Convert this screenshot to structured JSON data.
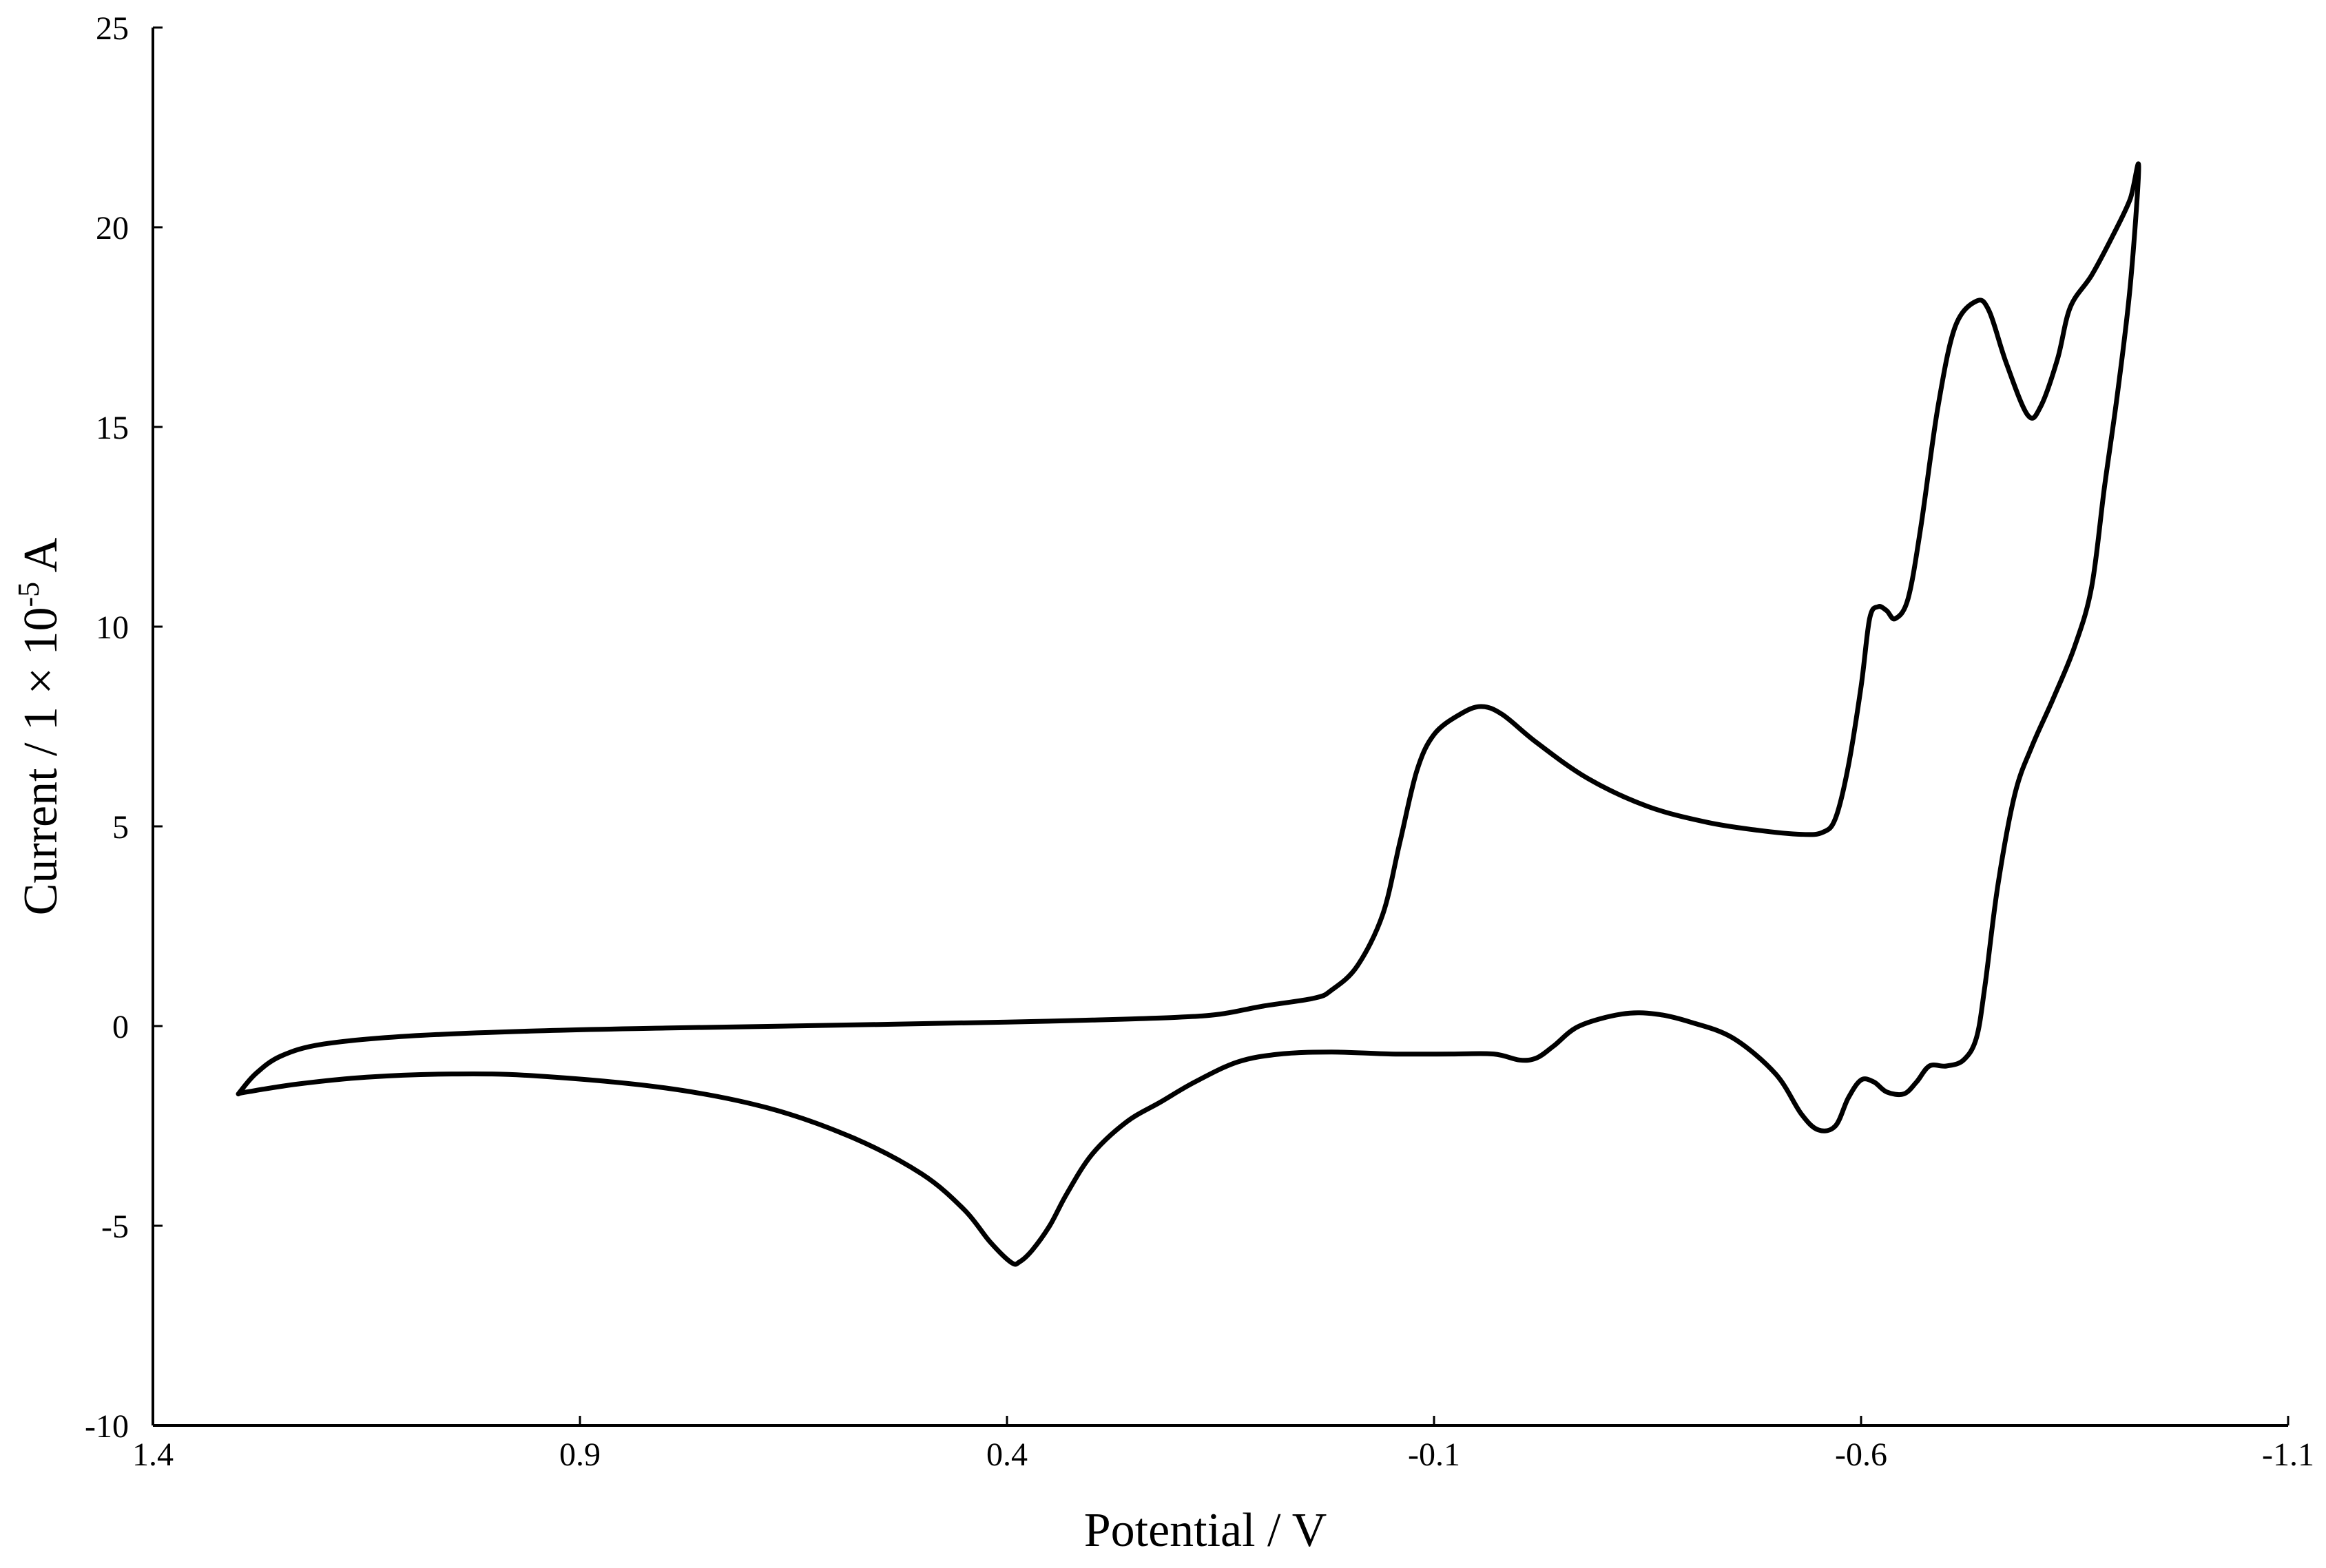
{
  "chart_data": {
    "type": "line",
    "title": "",
    "xlabel": "Potential / V",
    "ylabel": {
      "main": "Current / 1 × 10",
      "exponent": "-5",
      "unit": " A"
    },
    "xlim": [
      1.4,
      -1.1
    ],
    "ylim": [
      -10,
      25
    ],
    "x_reversed": true,
    "grid": false,
    "legend": "none",
    "line_color": "#000000",
    "x_ticks": [
      {
        "value": 1.4,
        "label": "1.4"
      },
      {
        "value": 0.9,
        "label": "0.9"
      },
      {
        "value": 0.4,
        "label": "0.4"
      },
      {
        "value": -0.1,
        "label": "-0.1"
      },
      {
        "value": -0.6,
        "label": "-0.6"
      },
      {
        "value": -1.1,
        "label": "-1.1"
      }
    ],
    "y_ticks": [
      {
        "value": 25,
        "label": "25"
      },
      {
        "value": 20,
        "label": "20"
      },
      {
        "value": 15,
        "label": "15"
      },
      {
        "value": 10,
        "label": "10"
      },
      {
        "value": 5,
        "label": "5"
      },
      {
        "value": 0,
        "label": "0"
      },
      {
        "value": -5,
        "label": "-5"
      },
      {
        "value": -10,
        "label": "-10"
      }
    ],
    "series": [
      {
        "points": [
          [
            1.3,
            -1.7
          ],
          [
            1.28,
            -1.2
          ],
          [
            1.25,
            -0.75
          ],
          [
            1.2,
            -0.45
          ],
          [
            1.1,
            -0.25
          ],
          [
            0.95,
            -0.12
          ],
          [
            0.8,
            -0.05
          ],
          [
            0.6,
            0.02
          ],
          [
            0.4,
            0.1
          ],
          [
            0.3,
            0.15
          ],
          [
            0.2,
            0.22
          ],
          [
            0.15,
            0.3
          ],
          [
            0.1,
            0.5
          ],
          [
            0.04,
            0.7
          ],
          [
            0.02,
            0.9
          ],
          [
            -0.01,
            1.5
          ],
          [
            -0.04,
            2.8
          ],
          [
            -0.06,
            4.6
          ],
          [
            -0.08,
            6.4
          ],
          [
            -0.1,
            7.3
          ],
          [
            -0.13,
            7.8
          ],
          [
            -0.155,
            8.0
          ],
          [
            -0.18,
            7.8
          ],
          [
            -0.22,
            7.1
          ],
          [
            -0.28,
            6.2
          ],
          [
            -0.35,
            5.5
          ],
          [
            -0.42,
            5.1
          ],
          [
            -0.48,
            4.9
          ],
          [
            -0.53,
            4.8
          ],
          [
            -0.555,
            4.85
          ],
          [
            -0.57,
            5.2
          ],
          [
            -0.585,
            6.5
          ],
          [
            -0.6,
            8.5
          ],
          [
            -0.61,
            10.2
          ],
          [
            -0.62,
            10.5
          ],
          [
            -0.63,
            10.4
          ],
          [
            -0.64,
            10.2
          ],
          [
            -0.655,
            10.7
          ],
          [
            -0.67,
            12.5
          ],
          [
            -0.69,
            15.5
          ],
          [
            -0.71,
            17.5
          ],
          [
            -0.735,
            18.15
          ],
          [
            -0.75,
            17.9
          ],
          [
            -0.77,
            16.6
          ],
          [
            -0.795,
            15.3
          ],
          [
            -0.81,
            15.5
          ],
          [
            -0.83,
            16.7
          ],
          [
            -0.845,
            18.0
          ],
          [
            -0.87,
            18.8
          ],
          [
            -0.895,
            19.8
          ],
          [
            -0.915,
            20.7
          ],
          [
            -0.925,
            21.5
          ],
          [
            -0.915,
            18.5
          ],
          [
            -0.9,
            15.8
          ],
          [
            -0.885,
            13.5
          ],
          [
            -0.87,
            11.0
          ],
          [
            -0.85,
            9.5
          ],
          [
            -0.825,
            8.2
          ],
          [
            -0.8,
            7.0
          ],
          [
            -0.78,
            5.8
          ],
          [
            -0.76,
            3.5
          ],
          [
            -0.745,
            1.0
          ],
          [
            -0.735,
            -0.3
          ],
          [
            -0.72,
            -0.85
          ],
          [
            -0.7,
            -1.0
          ],
          [
            -0.68,
            -1.0
          ],
          [
            -0.665,
            -1.4
          ],
          [
            -0.65,
            -1.7
          ],
          [
            -0.63,
            -1.65
          ],
          [
            -0.615,
            -1.4
          ],
          [
            -0.6,
            -1.35
          ],
          [
            -0.585,
            -1.8
          ],
          [
            -0.57,
            -2.5
          ],
          [
            -0.55,
            -2.6
          ],
          [
            -0.53,
            -2.2
          ],
          [
            -0.5,
            -1.2
          ],
          [
            -0.45,
            -0.3
          ],
          [
            -0.4,
            0.1
          ],
          [
            -0.36,
            0.3
          ],
          [
            -0.32,
            0.3
          ],
          [
            -0.27,
            0.0
          ],
          [
            -0.24,
            -0.5
          ],
          [
            -0.22,
            -0.8
          ],
          [
            -0.2,
            -0.85
          ],
          [
            -0.17,
            -0.7
          ],
          [
            -0.12,
            -0.7
          ],
          [
            -0.05,
            -0.7
          ],
          [
            0.02,
            -0.65
          ],
          [
            0.08,
            -0.7
          ],
          [
            0.13,
            -0.9
          ],
          [
            0.18,
            -1.4
          ],
          [
            0.22,
            -1.9
          ],
          [
            0.26,
            -2.4
          ],
          [
            0.3,
            -3.2
          ],
          [
            0.33,
            -4.2
          ],
          [
            0.35,
            -5.0
          ],
          [
            0.37,
            -5.6
          ],
          [
            0.385,
            -5.9
          ],
          [
            0.395,
            -5.92
          ],
          [
            0.42,
            -5.4
          ],
          [
            0.45,
            -4.6
          ],
          [
            0.5,
            -3.7
          ],
          [
            0.58,
            -2.8
          ],
          [
            0.68,
            -2.05
          ],
          [
            0.8,
            -1.55
          ],
          [
            0.95,
            -1.25
          ],
          [
            1.05,
            -1.2
          ],
          [
            1.15,
            -1.28
          ],
          [
            1.23,
            -1.45
          ],
          [
            1.29,
            -1.65
          ],
          [
            1.3,
            -1.7
          ]
        ]
      }
    ]
  }
}
